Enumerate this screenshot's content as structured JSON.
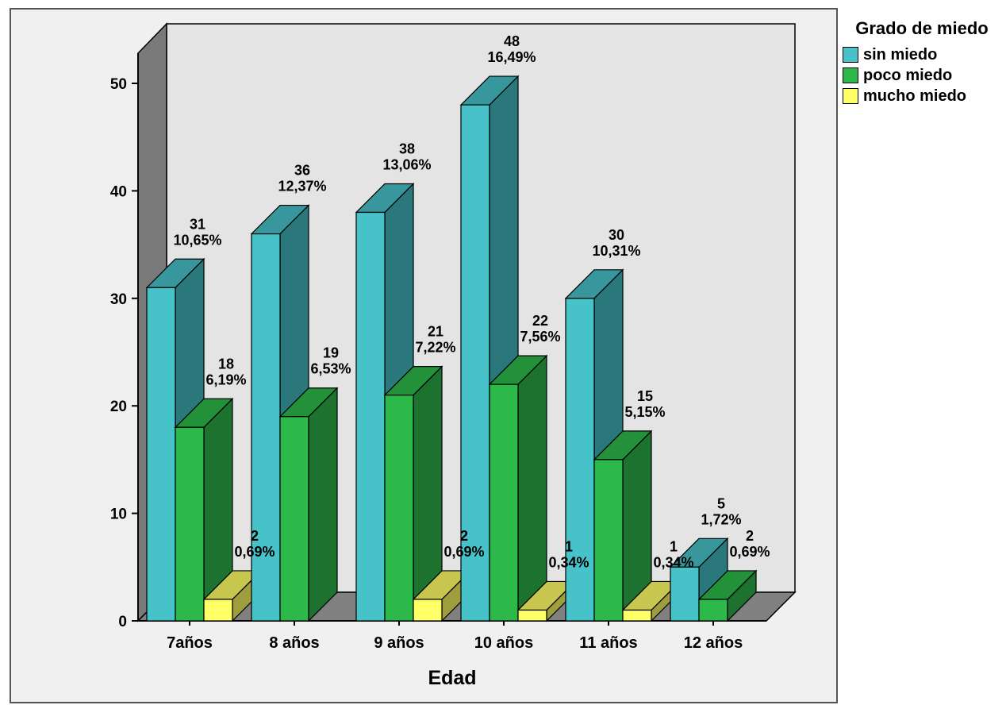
{
  "chart_data": {
    "type": "bar",
    "title": "",
    "xlabel": "Edad",
    "ylabel": "",
    "ylim": [
      0,
      50
    ],
    "yticks": [
      "0",
      "10",
      "20",
      "30",
      "40",
      "50"
    ],
    "categories": [
      "7años",
      "8 años",
      "9 años",
      "10 años",
      "11 años",
      "12 años"
    ],
    "legend_title": "Grado de miedo",
    "legend_position": "right",
    "series": [
      {
        "name": "sin miedo",
        "color": "#46c2c8",
        "values": [
          31,
          36,
          38,
          48,
          30,
          5
        ],
        "labels": [
          [
            "31",
            "10,65%"
          ],
          [
            "36",
            "12,37%"
          ],
          [
            "38",
            "13,06%"
          ],
          [
            "48",
            "16,49%"
          ],
          [
            "30",
            "10,31%"
          ],
          [
            "5",
            "1,72%"
          ]
        ]
      },
      {
        "name": "poco miedo",
        "color": "#2db84a",
        "values": [
          18,
          19,
          21,
          22,
          15,
          2
        ],
        "labels": [
          [
            "18",
            "6,19%"
          ],
          [
            "19",
            "6,53%"
          ],
          [
            "21",
            "7,22%"
          ],
          [
            "22",
            "7,56%"
          ],
          [
            "15",
            "5,15%"
          ],
          [
            "2",
            "0,69%"
          ]
        ]
      },
      {
        "name": "mucho miedo",
        "color": "#ffff66",
        "values": [
          2,
          0,
          2,
          1,
          1,
          0
        ],
        "labels": [
          [
            "2",
            "0,69%"
          ],
          null,
          [
            "2",
            "0,69%"
          ],
          [
            "1",
            "0,34%"
          ],
          [
            "1",
            "0,34%"
          ],
          null
        ]
      }
    ]
  }
}
